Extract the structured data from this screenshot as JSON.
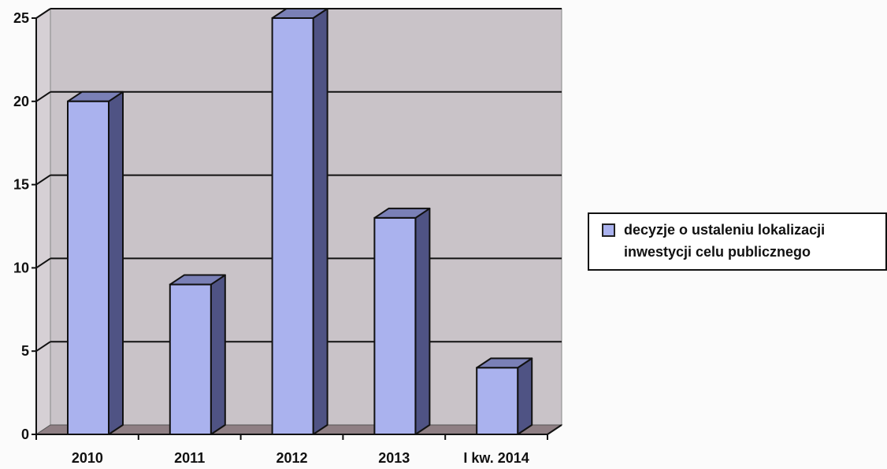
{
  "chart_data": {
    "type": "bar",
    "categories": [
      "2010",
      "2011",
      "2012",
      "2013",
      "I kw. 2014"
    ],
    "series": [
      {
        "name": "decyzje o ustaleniu lokalizacji inwestycji celu publicznego",
        "values": [
          20,
          9,
          25,
          13,
          4
        ]
      }
    ],
    "ylim": [
      0,
      25
    ],
    "yticks": [
      0,
      5,
      10,
      15,
      20,
      25
    ],
    "grid": true,
    "legend_position": "right",
    "style": "3d-column",
    "colors": {
      "bar_front": "#aab2ee",
      "bar_side": "#4f5384",
      "bar_top": "#7a80b6",
      "wall": "#c9c3c8",
      "floor": "#8f7f84",
      "outline": "#111111"
    }
  },
  "legend": {
    "line1": "decyzje o ustaleniu lokalizacji",
    "line2": "inwestycji celu publicznego"
  }
}
